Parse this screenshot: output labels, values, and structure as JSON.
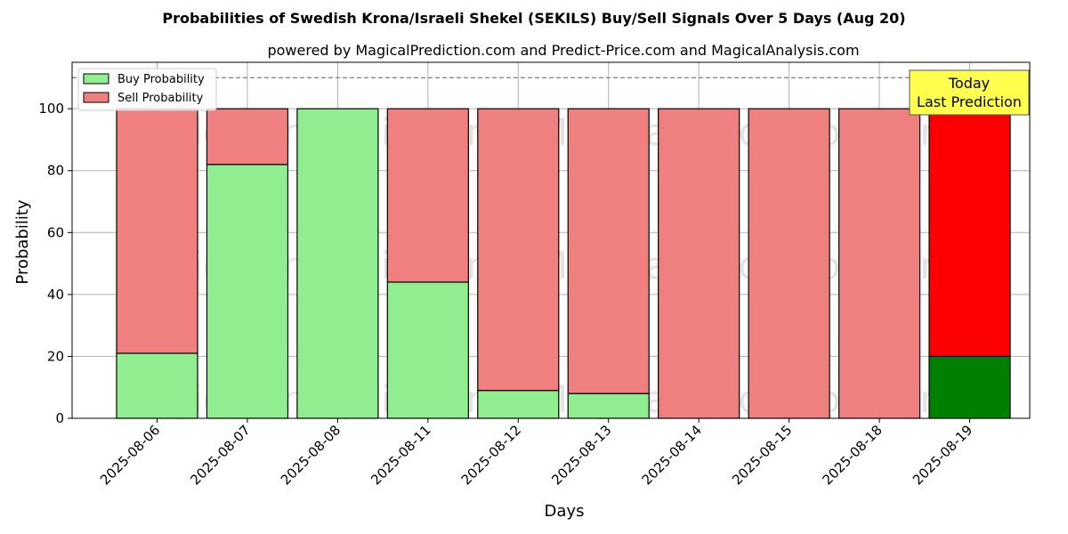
{
  "chart_data": {
    "type": "bar",
    "stacked": true,
    "title": "Probabilities of Swedish Krona/Israeli Shekel (SEKILS) Buy/Sell Signals Over 5 Days (Aug 20)",
    "subtitle": "powered by MagicalPrediction.com and Predict-Price.com and MagicalAnalysis.com",
    "xlabel": "Days",
    "ylabel": "Probability",
    "ylim": [
      0,
      115
    ],
    "yticks": [
      0,
      20,
      40,
      60,
      80,
      100
    ],
    "grid": true,
    "legend_position": "top-left",
    "reference_line": 110,
    "categories": [
      "2025-08-06",
      "2025-08-07",
      "2025-08-08",
      "2025-08-11",
      "2025-08-12",
      "2025-08-13",
      "2025-08-14",
      "2025-08-15",
      "2025-08-18",
      "2025-08-19"
    ],
    "series": [
      {
        "name": "Buy Probability",
        "values": [
          21,
          82,
          100,
          44,
          9,
          8,
          0,
          0,
          0,
          20
        ],
        "color": "#90ee90",
        "highlight_color": "#008000"
      },
      {
        "name": "Sell Probability",
        "values": [
          79,
          18,
          0,
          56,
          91,
          92,
          100,
          100,
          100,
          80
        ],
        "color": "#f08080",
        "highlight_color": "#ff0000"
      }
    ],
    "highlight_index": 9,
    "annotation": {
      "line1": "Today",
      "line2": "Last Prediction",
      "background": "#ffff4d"
    },
    "watermarks": [
      "MagicalAnalysis.com",
      "MagicalPrediction.com"
    ]
  }
}
